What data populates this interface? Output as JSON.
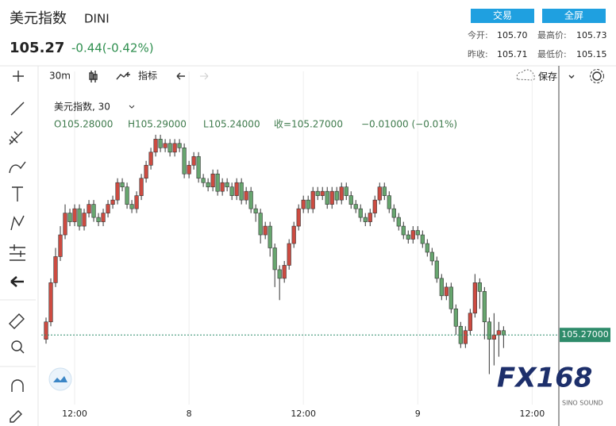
{
  "ui": {
    "title": "美元指数",
    "symbol": "DINI",
    "price": "105.27",
    "change": "-0.44(-0.42%)",
    "buttons": [
      "交易",
      "全屏"
    ],
    "stats": [
      {
        "label": "今开:",
        "value": "105.70"
      },
      {
        "label": "最高价:",
        "value": "105.73"
      },
      {
        "label": "昨收:",
        "value": "105.71"
      },
      {
        "label": "最低价:",
        "value": "105.15"
      }
    ],
    "toolbar": {
      "interval": "30m",
      "indicator": "指标",
      "save": "保存"
    },
    "watermark": "FX168",
    "watermark_sub": "SINO SOUND"
  },
  "chart_data": {
    "type": "candlestick",
    "title": "美元指数, 30",
    "ohlc_text": [
      "O105.28000",
      "H105.29000",
      "L105.24000",
      "收=105.27000",
      "−0.01000 (−0.01%)"
    ],
    "up_color": "#cd4b41",
    "down_color": "#67a66f",
    "grid": true,
    "price_line": {
      "value": 105.27,
      "label": "105.27000",
      "color": "#2e8b6a"
    },
    "xlim": [
      8.5,
      62.8
    ],
    "ylim": [
      105.11,
      105.83
    ],
    "xticks": [
      {
        "value": 12,
        "label": "12:00"
      },
      {
        "value": 24,
        "label": "8"
      },
      {
        "value": 36,
        "label": "12:00"
      },
      {
        "value": 48,
        "label": "9"
      },
      {
        "value": 60,
        "label": "12:00"
      }
    ],
    "x": [
      9,
      9.5,
      10,
      10.5,
      11,
      11.5,
      12,
      12.5,
      13,
      13.5,
      14,
      14.5,
      15,
      15.5,
      16,
      16.5,
      17,
      17.5,
      18,
      18.5,
      19,
      19.5,
      20,
      20.5,
      21,
      21.5,
      22,
      22.5,
      23,
      23.5,
      24,
      24.5,
      25,
      25.5,
      26,
      26.5,
      27,
      27.5,
      28,
      28.5,
      29,
      29.5,
      30,
      30.5,
      31,
      31.5,
      32,
      32.5,
      33,
      33.5,
      34,
      34.5,
      35,
      35.5,
      36,
      36.5,
      37,
      37.5,
      38,
      38.5,
      39,
      39.5,
      40,
      40.5,
      41,
      41.5,
      42,
      42.5,
      43,
      43.5,
      44,
      44.5,
      45,
      45.5,
      46,
      46.5,
      47,
      47.5,
      48,
      48.5,
      49,
      49.5,
      50,
      50.5,
      51,
      51.5,
      52,
      52.5,
      53,
      53.5,
      54,
      54.5,
      55,
      55.5,
      56,
      56.5,
      57
    ],
    "open": [
      105.26,
      105.3,
      105.39,
      105.45,
      105.5,
      105.55,
      105.53,
      105.56,
      105.52,
      105.55,
      105.57,
      105.54,
      105.53,
      105.55,
      105.57,
      105.58,
      105.62,
      105.61,
      105.57,
      105.56,
      105.59,
      105.63,
      105.66,
      105.69,
      105.72,
      105.7,
      105.71,
      105.69,
      105.71,
      105.7,
      105.64,
      105.66,
      105.68,
      105.63,
      105.62,
      105.61,
      105.64,
      105.6,
      105.62,
      105.61,
      105.59,
      105.62,
      105.58,
      105.6,
      105.56,
      105.55,
      105.5,
      105.52,
      105.47,
      105.42,
      105.4,
      105.43,
      105.48,
      105.52,
      105.56,
      105.58,
      105.56,
      105.6,
      105.59,
      105.6,
      105.57,
      105.6,
      105.58,
      105.61,
      105.59,
      105.57,
      105.56,
      105.54,
      105.53,
      105.55,
      105.58,
      105.61,
      105.59,
      105.56,
      105.54,
      105.52,
      105.5,
      105.49,
      105.51,
      105.5,
      105.48,
      105.46,
      105.44,
      105.4,
      105.36,
      105.38,
      105.33,
      105.29,
      105.25,
      105.28,
      105.32,
      105.39,
      105.37,
      105.3,
      105.26,
      105.27,
      105.28
    ],
    "high": [
      105.31,
      105.4,
      105.47,
      105.52,
      105.57,
      105.56,
      105.57,
      105.57,
      105.56,
      105.58,
      105.58,
      105.55,
      105.56,
      105.58,
      105.59,
      105.63,
      105.63,
      105.62,
      105.58,
      105.6,
      105.64,
      105.67,
      105.7,
      105.73,
      105.73,
      105.72,
      105.72,
      105.72,
      105.72,
      105.71,
      105.67,
      105.69,
      105.69,
      105.64,
      105.63,
      105.65,
      105.65,
      105.63,
      105.63,
      105.62,
      105.63,
      105.63,
      105.61,
      105.61,
      105.57,
      105.56,
      105.53,
      105.53,
      105.48,
      105.43,
      105.44,
      105.49,
      105.53,
      105.57,
      105.59,
      105.59,
      105.61,
      105.61,
      105.61,
      105.61,
      105.61,
      105.61,
      105.62,
      105.62,
      105.6,
      105.58,
      105.57,
      105.55,
      105.56,
      105.59,
      105.62,
      105.62,
      105.6,
      105.57,
      105.55,
      105.53,
      105.51,
      105.52,
      105.52,
      105.51,
      105.49,
      105.47,
      105.45,
      105.41,
      105.39,
      105.39,
      105.34,
      105.3,
      105.29,
      105.33,
      105.41,
      105.4,
      105.38,
      105.31,
      105.32,
      105.3,
      105.29
    ],
    "low": [
      105.25,
      105.29,
      105.38,
      105.44,
      105.49,
      105.52,
      105.52,
      105.51,
      105.51,
      105.54,
      105.53,
      105.52,
      105.52,
      105.54,
      105.56,
      105.57,
      105.6,
      105.56,
      105.55,
      105.55,
      105.58,
      105.62,
      105.65,
      105.68,
      105.69,
      105.69,
      105.68,
      105.68,
      105.69,
      105.63,
      105.63,
      105.65,
      105.62,
      105.61,
      105.6,
      105.6,
      105.59,
      105.59,
      105.6,
      105.58,
      105.58,
      105.57,
      105.57,
      105.55,
      105.53,
      105.48,
      105.49,
      105.45,
      105.38,
      105.35,
      105.39,
      105.42,
      105.47,
      105.51,
      105.55,
      105.55,
      105.55,
      105.58,
      105.58,
      105.56,
      105.56,
      105.57,
      105.57,
      105.58,
      105.56,
      105.55,
      105.53,
      105.52,
      105.52,
      105.54,
      105.57,
      105.58,
      105.55,
      105.53,
      105.51,
      105.49,
      105.48,
      105.48,
      105.49,
      105.47,
      105.45,
      105.43,
      105.39,
      105.35,
      105.35,
      105.32,
      105.27,
      105.24,
      105.24,
      105.27,
      105.31,
      105.33,
      105.26,
      105.18,
      105.2,
      105.22,
      105.24
    ],
    "close": [
      105.3,
      105.39,
      105.45,
      105.5,
      105.55,
      105.53,
      105.56,
      105.52,
      105.55,
      105.57,
      105.54,
      105.53,
      105.55,
      105.57,
      105.58,
      105.62,
      105.61,
      105.57,
      105.56,
      105.59,
      105.63,
      105.66,
      105.69,
      105.72,
      105.7,
      105.71,
      105.69,
      105.71,
      105.7,
      105.64,
      105.66,
      105.68,
      105.63,
      105.62,
      105.61,
      105.64,
      105.6,
      105.62,
      105.61,
      105.59,
      105.62,
      105.58,
      105.6,
      105.56,
      105.55,
      105.5,
      105.52,
      105.47,
      105.42,
      105.4,
      105.43,
      105.48,
      105.52,
      105.56,
      105.58,
      105.56,
      105.6,
      105.59,
      105.6,
      105.57,
      105.6,
      105.58,
      105.61,
      105.59,
      105.57,
      105.56,
      105.54,
      105.53,
      105.55,
      105.58,
      105.61,
      105.59,
      105.56,
      105.54,
      105.52,
      105.5,
      105.49,
      105.51,
      105.5,
      105.48,
      105.46,
      105.44,
      105.4,
      105.36,
      105.38,
      105.33,
      105.29,
      105.25,
      105.28,
      105.32,
      105.39,
      105.37,
      105.3,
      105.26,
      105.27,
      105.28,
      105.27
    ]
  }
}
